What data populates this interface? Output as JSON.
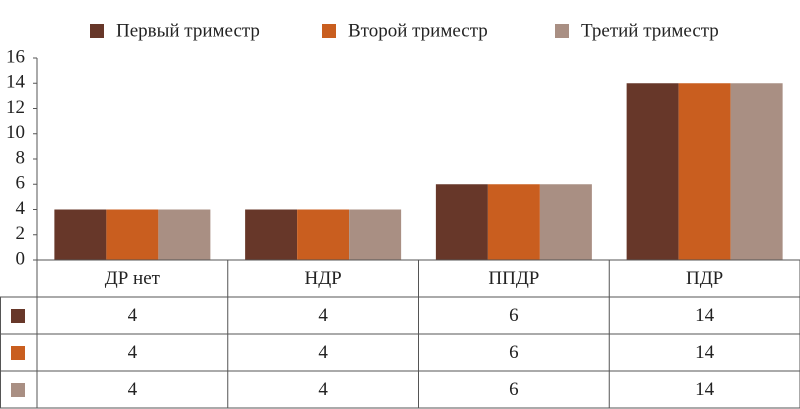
{
  "chart_data": {
    "type": "bar",
    "categories": [
      "ДР нет",
      "НДР",
      "ППДР",
      "ПДР"
    ],
    "series": [
      {
        "name": "Первый триместр",
        "color": "#673729",
        "values": [
          4,
          4,
          6,
          14
        ]
      },
      {
        "name": "Второй триместр",
        "color": "#c95e1f",
        "values": [
          4,
          4,
          6,
          14
        ]
      },
      {
        "name": "Третий триместр",
        "color": "#a98f83",
        "values": [
          4,
          4,
          6,
          14
        ]
      }
    ],
    "ylim": [
      0,
      16
    ],
    "yticks": [
      0,
      2,
      4,
      6,
      8,
      10,
      12,
      14,
      16
    ],
    "grid": false,
    "legend": "top",
    "data_table": true
  }
}
